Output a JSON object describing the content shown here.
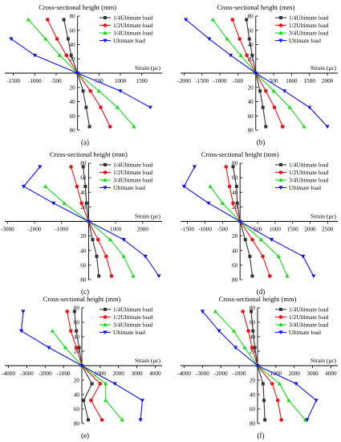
{
  "chart_data": [
    {
      "panel_label": "(a)",
      "type": "line",
      "title": "Cross-sectional height (mm)",
      "xlabel": "Strain (με)",
      "xlim": [
        -1700,
        1900
      ],
      "ylim": [
        80,
        -80
      ],
      "x_ticks": [
        -1500,
        -1000,
        -500,
        500,
        1000,
        1500
      ],
      "y_ticks_top": [
        80,
        60,
        40,
        20
      ],
      "y_ticks_bottom": [
        20,
        40,
        60,
        80
      ],
      "y_ticks_top_values": [
        -80,
        -60,
        -40,
        -20
      ],
      "y_ticks_bottom_values": [
        20,
        40,
        60,
        80
      ],
      "legend_position": "top-right",
      "series": [
        {
          "name": "1/4Ultimate load",
          "color": "#333333",
          "marker": "square",
          "points": [
            [
              -320,
              -75
            ],
            [
              -220,
              -48
            ],
            [
              -150,
              -25
            ],
            [
              0,
              0
            ],
            [
              130,
              25
            ],
            [
              200,
              48
            ],
            [
              280,
              75
            ]
          ]
        },
        {
          "name": "1/2Ultimate load",
          "color": "#ee1111",
          "marker": "circle",
          "points": [
            [
              -700,
              -75
            ],
            [
              -480,
              -48
            ],
            [
              -260,
              -25
            ],
            [
              0,
              0
            ],
            [
              300,
              25
            ],
            [
              540,
              48
            ],
            [
              760,
              75
            ]
          ]
        },
        {
          "name": "3/4Ultimate load",
          "color": "#11dd11",
          "marker": "triangle-up",
          "points": [
            [
              -1150,
              -75
            ],
            [
              -750,
              -48
            ],
            [
              -420,
              -25
            ],
            [
              0,
              0
            ],
            [
              500,
              25
            ],
            [
              930,
              48
            ],
            [
              1320,
              75
            ]
          ]
        },
        {
          "name": "Ultimate load",
          "color": "#1111ee",
          "marker": "triangle-down",
          "points": [
            [
              -1550,
              -48
            ],
            [
              -1000,
              -25
            ],
            [
              0,
              0
            ],
            [
              1000,
              25
            ],
            [
              1700,
              48
            ]
          ]
        }
      ]
    },
    {
      "panel_label": "(b)",
      "type": "line",
      "title": "Cross-sectional height (mm)",
      "xlabel": "Strain (με)",
      "xlim": [
        -2100,
        2200
      ],
      "ylim": [
        80,
        -80
      ],
      "x_ticks": [
        -2000,
        -1500,
        -1000,
        -500,
        500,
        1000,
        1500,
        2000
      ],
      "y_ticks_top": [
        80,
        60,
        40,
        20
      ],
      "y_ticks_bottom": [
        20,
        40,
        60,
        80
      ],
      "y_ticks_top_values": [
        -80,
        -60,
        -40,
        -20
      ],
      "y_ticks_bottom_values": [
        20,
        40,
        60,
        80
      ],
      "legend_position": "top-right",
      "series": [
        {
          "name": "1/4Ultimate load",
          "color": "#333333",
          "marker": "square",
          "points": [
            [
              -260,
              -75
            ],
            [
              -180,
              -48
            ],
            [
              -100,
              -25
            ],
            [
              0,
              0
            ],
            [
              120,
              25
            ],
            [
              200,
              48
            ],
            [
              280,
              75
            ]
          ]
        },
        {
          "name": "1/2Ultimate load",
          "color": "#ee1111",
          "marker": "circle",
          "points": [
            [
              -650,
              -75
            ],
            [
              -450,
              -48
            ],
            [
              -250,
              -25
            ],
            [
              0,
              0
            ],
            [
              280,
              25
            ],
            [
              520,
              48
            ],
            [
              750,
              75
            ]
          ]
        },
        {
          "name": "3/4Ultimate load",
          "color": "#11dd11",
          "marker": "triangle-up",
          "points": [
            [
              -1200,
              -75
            ],
            [
              -800,
              -48
            ],
            [
              -420,
              -25
            ],
            [
              0,
              0
            ],
            [
              500,
              25
            ],
            [
              950,
              48
            ],
            [
              1350,
              75
            ]
          ]
        },
        {
          "name": "Ultimate load",
          "color": "#1111ee",
          "marker": "triangle-down",
          "points": [
            [
              -1950,
              -75
            ],
            [
              -1300,
              -48
            ],
            [
              -700,
              -25
            ],
            [
              0,
              0
            ],
            [
              800,
              25
            ],
            [
              1500,
              48
            ],
            [
              2000,
              75
            ]
          ]
        }
      ]
    },
    {
      "panel_label": "(c)",
      "type": "line",
      "title": "Cross-sectional height (mm)",
      "xlabel": "Strain (με)",
      "xlim": [
        -3100,
        2600
      ],
      "ylim": [
        80,
        -80
      ],
      "x_ticks": [
        -3000,
        -2000,
        -1000,
        1000,
        2000
      ],
      "y_ticks_top": [
        80,
        60,
        40,
        20
      ],
      "y_ticks_bottom": [
        20,
        40,
        60,
        80
      ],
      "y_ticks_top_values": [
        -80,
        -60,
        -40,
        -20
      ],
      "y_ticks_bottom_values": [
        20,
        40,
        60,
        80
      ],
      "legend_position": "top-right",
      "series": [
        {
          "name": "1/4Ultimate load",
          "color": "#333333",
          "marker": "square",
          "points": [
            [
              -200,
              -75
            ],
            [
              -120,
              -48
            ],
            [
              -80,
              -25
            ],
            [
              0,
              0
            ],
            [
              150,
              25
            ],
            [
              300,
              48
            ],
            [
              380,
              75
            ]
          ]
        },
        {
          "name": "1/2Ultimate load",
          "color": "#ee1111",
          "marker": "circle",
          "points": [
            [
              -650,
              -75
            ],
            [
              -430,
              -48
            ],
            [
              -260,
              -25
            ],
            [
              0,
              0
            ],
            [
              350,
              25
            ],
            [
              650,
              48
            ],
            [
              850,
              75
            ]
          ]
        },
        {
          "name": "3/4Ultimate load",
          "color": "#11dd11",
          "marker": "triangle-up",
          "points": [
            [
              -1600,
              -48
            ],
            [
              -900,
              -25
            ],
            [
              0,
              0
            ],
            [
              800,
              25
            ],
            [
              1300,
              48
            ],
            [
              1650,
              75
            ]
          ]
        },
        {
          "name": "Ultimate load",
          "color": "#1111ee",
          "marker": "triangle-down",
          "points": [
            [
              -1800,
              -75
            ],
            [
              -2400,
              -48
            ],
            [
              -1300,
              -25
            ],
            [
              0,
              0
            ],
            [
              1300,
              25
            ],
            [
              2100,
              48
            ],
            [
              2600,
              75
            ]
          ]
        }
      ]
    },
    {
      "panel_label": "(d)",
      "type": "line",
      "title": "Cross-sectional height (mm)",
      "xlabel": "Strain (με)",
      "xlim": [
        -1700,
        2700
      ],
      "ylim": [
        80,
        -80
      ],
      "x_ticks": [
        -1500,
        -1000,
        -500,
        500,
        1000,
        1500,
        2000,
        2500
      ],
      "y_ticks_top": [
        80,
        60,
        40,
        20
      ],
      "y_ticks_bottom": [
        20,
        40,
        60,
        80
      ],
      "y_ticks_top_values": [
        -80,
        -60,
        -40,
        -20
      ],
      "y_ticks_bottom_values": [
        20,
        40,
        60,
        80
      ],
      "legend_position": "top-right",
      "series": [
        {
          "name": "1/4Ultimate load",
          "color": "#333333",
          "marker": "square",
          "points": [
            [
              -200,
              -75
            ],
            [
              -100,
              -48
            ],
            [
              -80,
              -25
            ],
            [
              0,
              0
            ],
            [
              150,
              25
            ],
            [
              280,
              48
            ],
            [
              350,
              75
            ]
          ]
        },
        {
          "name": "1/2Ultimate load",
          "color": "#ee1111",
          "marker": "circle",
          "points": [
            [
              -400,
              -75
            ],
            [
              -300,
              -48
            ],
            [
              -200,
              -25
            ],
            [
              0,
              0
            ],
            [
              350,
              25
            ],
            [
              650,
              48
            ],
            [
              850,
              75
            ]
          ]
        },
        {
          "name": "3/4Ultimate load",
          "color": "#11dd11",
          "marker": "triangle-up",
          "points": [
            [
              -850,
              -48
            ],
            [
              -500,
              -25
            ],
            [
              0,
              0
            ],
            [
              600,
              25
            ],
            [
              1100,
              48
            ],
            [
              1350,
              75
            ]
          ]
        },
        {
          "name": "Ultimate load",
          "color": "#1111ee",
          "marker": "triangle-down",
          "points": [
            [
              -1300,
              -75
            ],
            [
              -1600,
              -48
            ],
            [
              -900,
              -25
            ],
            [
              0,
              0
            ],
            [
              900,
              25
            ],
            [
              1800,
              48
            ],
            [
              2100,
              75
            ]
          ]
        }
      ]
    },
    {
      "panel_label": "(e)",
      "type": "line",
      "title": "Cross-sectional height (mm)",
      "xlabel": "Strain (με)",
      "xlim": [
        -4200,
        4200
      ],
      "ylim": [
        80,
        -80
      ],
      "x_ticks": [
        -4000,
        -3000,
        -2000,
        -1000,
        1000,
        2000,
        3000,
        4000
      ],
      "y_ticks_top": [
        80,
        60,
        40,
        20
      ],
      "y_ticks_bottom": [
        20,
        40,
        60,
        80
      ],
      "y_ticks_top_values": [
        -80,
        -60,
        -40,
        -20
      ],
      "y_ticks_bottom_values": [
        20,
        40,
        60,
        80
      ],
      "legend_position": "top-right",
      "series": [
        {
          "name": "1/4Ultimate load",
          "color": "#333333",
          "marker": "square",
          "points": [
            [
              -400,
              -75
            ],
            [
              -300,
              -48
            ],
            [
              -150,
              -25
            ],
            [
              0,
              0
            ],
            [
              550,
              25
            ],
            [
              100,
              48
            ],
            [
              350,
              75
            ]
          ]
        },
        {
          "name": "1/2Ultimate load",
          "color": "#ee1111",
          "marker": "circle",
          "points": [
            [
              -800,
              -75
            ],
            [
              -600,
              -48
            ],
            [
              -300,
              -25
            ],
            [
              0,
              0
            ],
            [
              1000,
              25
            ],
            [
              500,
              48
            ],
            [
              1100,
              75
            ]
          ]
        },
        {
          "name": "3/4Ultimate load",
          "color": "#11dd11",
          "marker": "triangle-up",
          "points": [
            [
              -1600,
              -48
            ],
            [
              -900,
              -25
            ],
            [
              0,
              0
            ],
            [
              1300,
              25
            ],
            [
              1300,
              48
            ],
            [
              2200,
              75
            ]
          ]
        },
        {
          "name": "Ultimate load",
          "color": "#1111ee",
          "marker": "triangle-down",
          "points": [
            [
              -3200,
              -75
            ],
            [
              -3300,
              -48
            ],
            [
              -1800,
              -25
            ],
            [
              0,
              0
            ],
            [
              1800,
              25
            ],
            [
              3300,
              48
            ],
            [
              3200,
              75
            ]
          ]
        }
      ]
    },
    {
      "panel_label": "(f)",
      "type": "line",
      "title": "Cross-sectional height (mm)",
      "xlabel": "Strain (με)",
      "xlim": [
        -4200,
        4200
      ],
      "ylim": [
        80,
        -80
      ],
      "x_ticks": [
        -4000,
        -3000,
        -2000,
        -1000,
        1000,
        2000,
        3000,
        4000
      ],
      "y_ticks_top": [
        80,
        60,
        40,
        20
      ],
      "y_ticks_bottom": [
        20,
        40,
        60,
        80
      ],
      "y_ticks_top_values": [
        -80,
        -60,
        -40,
        -20
      ],
      "y_ticks_bottom_values": [
        20,
        40,
        60,
        80
      ],
      "legend_position": "top-right",
      "series": [
        {
          "name": "1/4Ultimate load",
          "color": "#333333",
          "marker": "square",
          "points": [
            [
              -350,
              -75
            ],
            [
              -250,
              -48
            ],
            [
              -150,
              -25
            ],
            [
              0,
              0
            ],
            [
              300,
              25
            ],
            [
              350,
              48
            ],
            [
              400,
              75
            ]
          ]
        },
        {
          "name": "1/2Ultimate load",
          "color": "#ee1111",
          "marker": "circle",
          "points": [
            [
              -800,
              -75
            ],
            [
              -500,
              -48
            ],
            [
              -300,
              -25
            ],
            [
              0,
              0
            ],
            [
              800,
              25
            ],
            [
              1100,
              48
            ],
            [
              1300,
              75
            ]
          ]
        },
        {
          "name": "3/4Ultimate load",
          "color": "#11dd11",
          "marker": "triangle-up",
          "points": [
            [
              -2300,
              -75
            ],
            [
              -1300,
              -48
            ],
            [
              -700,
              -25
            ],
            [
              0,
              0
            ],
            [
              1200,
              25
            ],
            [
              1700,
              48
            ],
            [
              2600,
              75
            ]
          ]
        },
        {
          "name": "Ultimate load",
          "color": "#1111ee",
          "marker": "triangle-down",
          "points": [
            [
              -3000,
              -75
            ],
            [
              -2100,
              -48
            ],
            [
              -1200,
              -25
            ],
            [
              0,
              0
            ],
            [
              2100,
              25
            ],
            [
              3200,
              48
            ],
            [
              2700,
              75
            ]
          ]
        }
      ]
    }
  ]
}
